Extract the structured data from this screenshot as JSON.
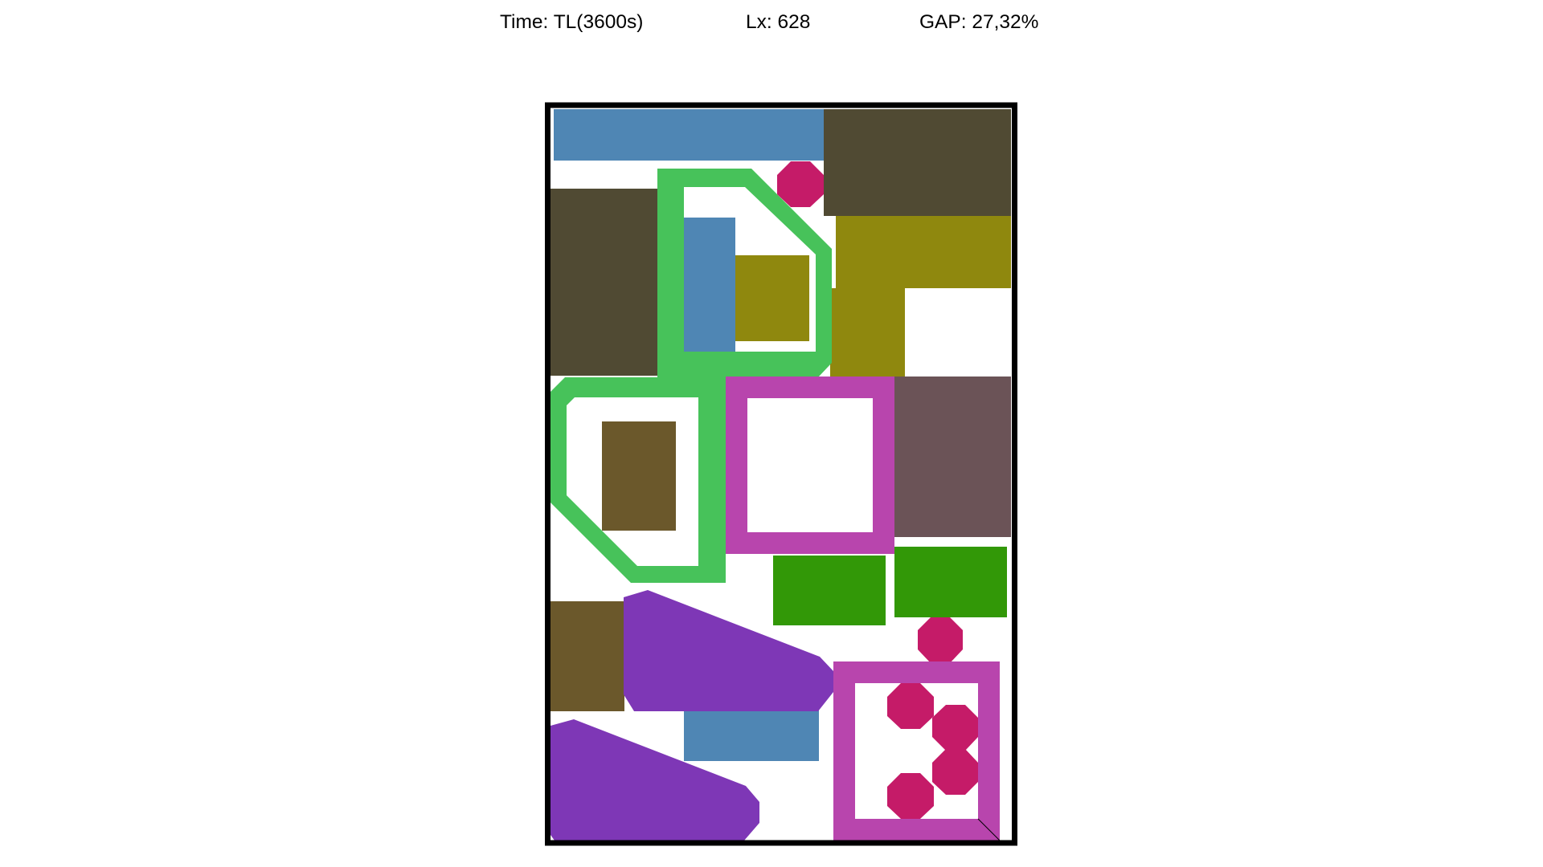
{
  "header": {
    "time_text": "Time: TL(3600s)",
    "lx_text": "Lx: 628",
    "gap_text": "GAP: 27,32%"
  },
  "colors": {
    "background": "#ffffff",
    "container_border": "#000000",
    "steel_blue": "#4f86b4",
    "dark_olive": "#504a33",
    "crimson": "#c51b68",
    "bright_green": "#47c25a",
    "olive": "#8f880e",
    "magenta": "#b845ad",
    "mauve_brown": "#6b5357",
    "brown": "#6b582b",
    "forest_green": "#329807",
    "purple": "#7e37b6"
  }
}
